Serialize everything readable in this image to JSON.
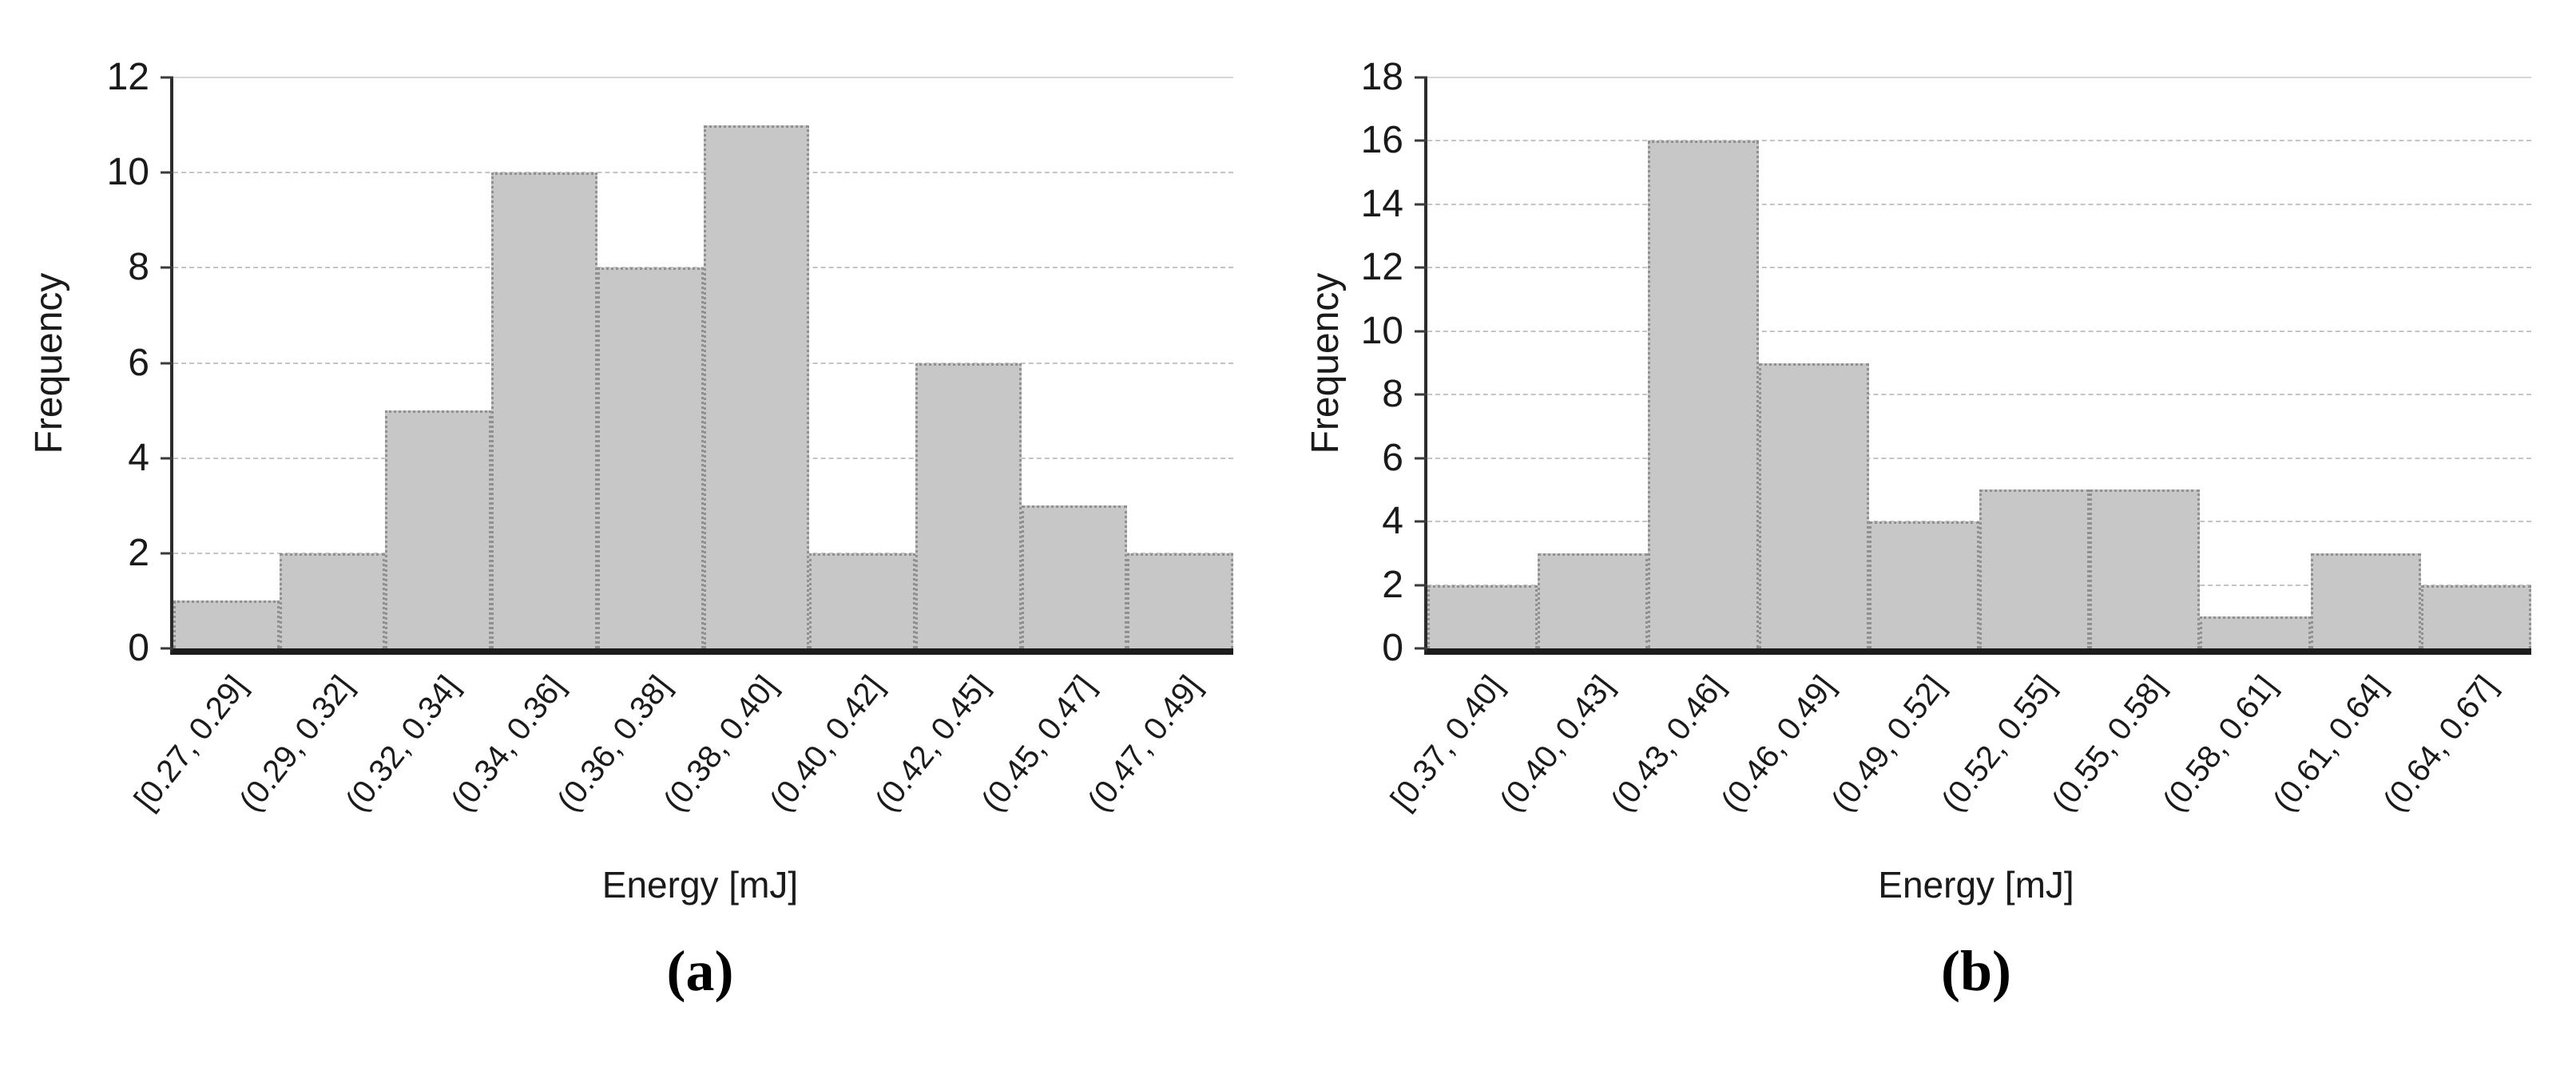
{
  "figure": {
    "background": "#ffffff"
  },
  "colors": {
    "bar_fill": "#c7c7c7",
    "bar_border": "#909090",
    "gridline_dashed": "#c4c4c4",
    "gridline_top_solid": "#d6d6d6",
    "axis_line": "#1c1c1c",
    "text": "#1a1a1a"
  },
  "chart_data": [
    {
      "type": "bar",
      "chart_kind": "histogram",
      "caption": "(a)",
      "xlabel": "Energy [mJ]",
      "ylabel": "Frequency",
      "categories": [
        "[0.27, 0.29]",
        "(0.29, 0.32]",
        "(0.32, 0.34]",
        "(0.34, 0.36]",
        "(0.36, 0.38]",
        "(0.38, 0.40]",
        "(0.40, 0.42]",
        "(0.42, 0.45]",
        "(0.45, 0.47]",
        "(0.47, 0.49]"
      ],
      "values": [
        1,
        2,
        5,
        10,
        8,
        11,
        2,
        6,
        3,
        2
      ],
      "ylim": [
        0,
        12
      ],
      "ytick_step": 2,
      "grid": "horizontal-dashed, top-line-solid",
      "legend": "none"
    },
    {
      "type": "bar",
      "chart_kind": "histogram",
      "caption": "(b)",
      "xlabel": "Energy [mJ]",
      "ylabel": "Frequency",
      "categories": [
        "[0.37, 0.40]",
        "(0.40, 0.43]",
        "(0.43, 0.46]",
        "(0.46, 0.49]",
        "(0.49, 0.52]",
        "(0.52, 0.55]",
        "(0.55, 0.58]",
        "(0.58, 0.61]",
        "(0.61, 0.64]",
        "(0.64, 0.67]"
      ],
      "values": [
        2,
        3,
        16,
        9,
        4,
        5,
        5,
        1,
        3,
        2
      ],
      "ylim": [
        0,
        18
      ],
      "ytick_step": 2,
      "grid": "horizontal-dashed, top-line-solid",
      "legend": "none"
    }
  ]
}
